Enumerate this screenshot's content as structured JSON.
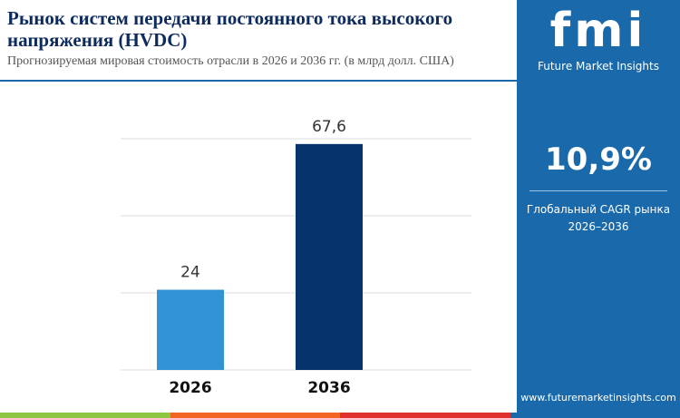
{
  "chart_data": {
    "type": "bar",
    "title": "Рынок систем передачи постоянного тока высокого напряжения (HVDC)",
    "subtitle": "Прогнозируемая мировая стоимость отрасли в 2026 и 2036 гг. (в млрд долл. США)",
    "categories": [
      "2026",
      "2036"
    ],
    "values": [
      24,
      67.6
    ],
    "value_labels": [
      "24",
      "67,6"
    ],
    "colors": [
      "#3192d6",
      "#06336b"
    ],
    "ylim": [
      0,
      70
    ]
  },
  "sidebar": {
    "logo": "fmi",
    "brand": "Future Market Insights",
    "cagr": "10,9%",
    "cagr_label": "Глобальный CAGR рынка",
    "cagr_period": "2026–2036",
    "url": "www.futuremarketinsights.com"
  }
}
